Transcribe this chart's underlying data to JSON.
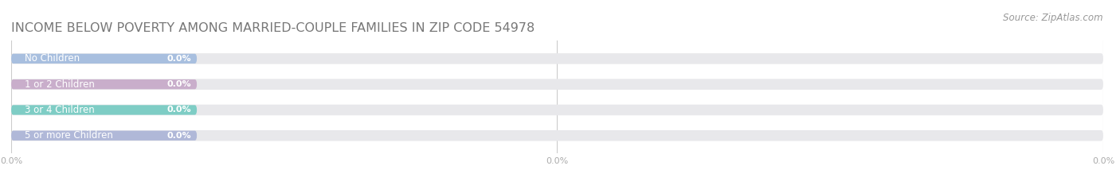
{
  "title": "INCOME BELOW POVERTY AMONG MARRIED-COUPLE FAMILIES IN ZIP CODE 54978",
  "source": "Source: ZipAtlas.com",
  "categories": [
    "No Children",
    "1 or 2 Children",
    "3 or 4 Children",
    "5 or more Children"
  ],
  "values": [
    0.0,
    0.0,
    0.0,
    0.0
  ],
  "bar_colors": [
    "#a8bfdf",
    "#c9aecb",
    "#7ecdc5",
    "#b0b8d8"
  ],
  "background_color": "#ffffff",
  "bar_bg_color": "#e8e8eb",
  "title_color": "#777777",
  "source_color": "#999999",
  "tick_color": "#aaaaaa",
  "label_color_dark": "#888888",
  "value_color_white": "#ffffff",
  "grid_color": "#cccccc",
  "title_fontsize": 11.5,
  "label_fontsize": 8.5,
  "value_fontsize": 8.0,
  "source_fontsize": 8.5,
  "tick_fontsize": 8.0,
  "xlim": [
    0,
    100
  ],
  "xtick_positions": [
    0,
    50,
    100
  ],
  "xtick_labels": [
    "0.0%",
    "0.0%",
    "0.0%"
  ]
}
